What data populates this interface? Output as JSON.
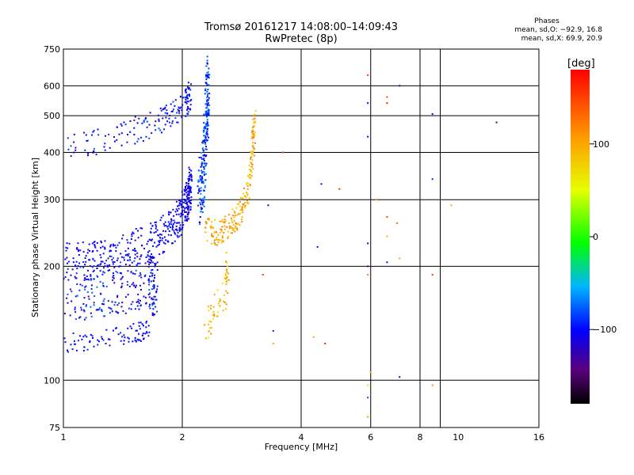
{
  "header": {
    "title": "Tromsø 20161217 14:08:00–14:09:43",
    "subtitle": "RwPretec (8p)"
  },
  "stats": {
    "heading": "Phases",
    "line_o": "mean, sd,O: −92.9, 16.8",
    "line_x": "mean, sd,X: 69.9, 20.9"
  },
  "chart_data": {
    "type": "scatter",
    "title": "Tromsø 20161217 14:08:00–14:09:43",
    "subtitle": "RwPretec (8p)",
    "xlabel": "Frequency [MHz]",
    "ylabel": "Stationary phase Virtual Height [km]",
    "xscale": "log",
    "yscale": "log",
    "xlim": [
      1,
      16
    ],
    "ylim": [
      75,
      750
    ],
    "xticks": [
      1,
      2,
      4,
      6,
      8,
      10,
      16
    ],
    "xtick_labels": [
      "1",
      "2",
      "4",
      "6",
      "8",
      "10",
      "16"
    ],
    "xgrid": [
      1,
      2,
      4,
      6,
      8,
      9,
      16
    ],
    "yticks": [
      75,
      100,
      200,
      300,
      400,
      500,
      600,
      750
    ],
    "ytick_labels": [
      "75",
      "100",
      "200",
      "300",
      "400",
      "500",
      "600",
      "750"
    ],
    "grid": true,
    "colorbar": {
      "label": "[deg]",
      "range": [
        -180,
        180
      ],
      "ticks": [
        100,
        0,
        -100
      ],
      "tick_labels": [
        "100",
        "0",
        "−100"
      ]
    },
    "traces": [
      {
        "segments": [
          [
            1.0,
            205
          ],
          [
            1.15,
            206
          ],
          [
            1.3,
            210
          ],
          [
            1.5,
            220
          ],
          [
            1.7,
            235
          ],
          [
            1.85,
            250
          ],
          [
            1.97,
            270
          ],
          [
            2.04,
            290
          ],
          [
            2.08,
            310
          ],
          [
            2.1,
            330
          ]
        ],
        "jitter": 0.12,
        "count": 420,
        "phase": [
          -120,
          -90
        ]
      },
      {
        "segments": [
          [
            1.0,
            410
          ],
          [
            1.2,
            425
          ],
          [
            1.4,
            445
          ],
          [
            1.6,
            465
          ],
          [
            1.8,
            490
          ],
          [
            1.95,
            515
          ],
          [
            2.05,
            540
          ],
          [
            2.1,
            570
          ]
        ],
        "jitter": 0.08,
        "count": 170,
        "phase": [
          -120,
          -80
        ]
      },
      {
        "segments": [
          [
            1.0,
            170
          ],
          [
            1.2,
            175
          ],
          [
            1.45,
            180
          ],
          [
            1.65,
            182
          ],
          [
            1.72,
            175
          ]
        ],
        "jitter": 0.18,
        "count": 280,
        "phase": [
          -130,
          -70
        ]
      },
      {
        "segments": [
          [
            1.0,
            125
          ],
          [
            1.2,
            128
          ],
          [
            1.45,
            132
          ],
          [
            1.65,
            136
          ]
        ],
        "jitter": 0.06,
        "count": 90,
        "phase": [
          -110,
          -90
        ]
      },
      {
        "segments": [
          [
            2.2,
            300
          ],
          [
            2.25,
            340
          ],
          [
            2.28,
            400
          ],
          [
            2.3,
            470
          ],
          [
            2.32,
            560
          ],
          [
            2.32,
            620
          ]
        ],
        "jitter": 0.18,
        "count": 230,
        "phase": [
          -110,
          -60
        ]
      },
      {
        "segments": [
          [
            2.3,
            250
          ],
          [
            2.45,
            245
          ],
          [
            2.65,
            255
          ],
          [
            2.8,
            275
          ],
          [
            2.9,
            305
          ],
          [
            2.98,
            350
          ],
          [
            3.02,
            420
          ],
          [
            3.05,
            480
          ]
        ],
        "jitter": 0.08,
        "count": 210,
        "phase": [
          70,
          130
        ]
      },
      {
        "segments": [
          [
            2.3,
            140
          ],
          [
            2.4,
            150
          ],
          [
            2.55,
            165
          ],
          [
            2.6,
            185
          ],
          [
            2.6,
            200
          ]
        ],
        "jitter": 0.1,
        "count": 60,
        "phase": [
          60,
          120
        ]
      }
    ],
    "isolated_points": [
      {
        "x": 5.9,
        "y": 640,
        "phase": 150
      },
      {
        "x": 5.9,
        "y": 540,
        "phase": -100
      },
      {
        "x": 6.6,
        "y": 560,
        "phase": 150
      },
      {
        "x": 6.6,
        "y": 540,
        "phase": 170
      },
      {
        "x": 7.1,
        "y": 600,
        "phase": -120
      },
      {
        "x": 8.6,
        "y": 505,
        "phase": -110
      },
      {
        "x": 12.5,
        "y": 480,
        "phase": -150
      },
      {
        "x": 5.9,
        "y": 440,
        "phase": -110
      },
      {
        "x": 6.2,
        "y": 300,
        "phase": 120
      },
      {
        "x": 6.6,
        "y": 270,
        "phase": 150
      },
      {
        "x": 7.0,
        "y": 260,
        "phase": 130
      },
      {
        "x": 6.6,
        "y": 240,
        "phase": 100
      },
      {
        "x": 8.6,
        "y": 340,
        "phase": -90
      },
      {
        "x": 4.5,
        "y": 330,
        "phase": -100
      },
      {
        "x": 5.0,
        "y": 320,
        "phase": 160
      },
      {
        "x": 4.4,
        "y": 225,
        "phase": -100
      },
      {
        "x": 5.9,
        "y": 230,
        "phase": -110
      },
      {
        "x": 7.1,
        "y": 210,
        "phase": 100
      },
      {
        "x": 6.6,
        "y": 205,
        "phase": -110
      },
      {
        "x": 5.9,
        "y": 200,
        "phase": -150
      },
      {
        "x": 8.6,
        "y": 190,
        "phase": 150
      },
      {
        "x": 9.6,
        "y": 290,
        "phase": 100
      },
      {
        "x": 5.9,
        "y": 190,
        "phase": 120
      },
      {
        "x": 4.3,
        "y": 130,
        "phase": 100
      },
      {
        "x": 4.6,
        "y": 125,
        "phase": 160
      },
      {
        "x": 3.4,
        "y": 125,
        "phase": 100
      },
      {
        "x": 6.0,
        "y": 105,
        "phase": 100
      },
      {
        "x": 7.1,
        "y": 102,
        "phase": -110
      },
      {
        "x": 5.9,
        "y": 97,
        "phase": 40
      },
      {
        "x": 5.9,
        "y": 90,
        "phase": -80
      },
      {
        "x": 5.9,
        "y": 80,
        "phase": 110
      },
      {
        "x": 8.6,
        "y": 97,
        "phase": 110
      },
      {
        "x": 3.3,
        "y": 290,
        "phase": -110
      },
      {
        "x": 3.2,
        "y": 190,
        "phase": 150
      },
      {
        "x": 3.4,
        "y": 135,
        "phase": -90
      },
      {
        "x": 3.6,
        "y": 400,
        "phase": 150
      }
    ],
    "colors": {
      "background": "#ffffff",
      "grid": "#000000"
    }
  }
}
